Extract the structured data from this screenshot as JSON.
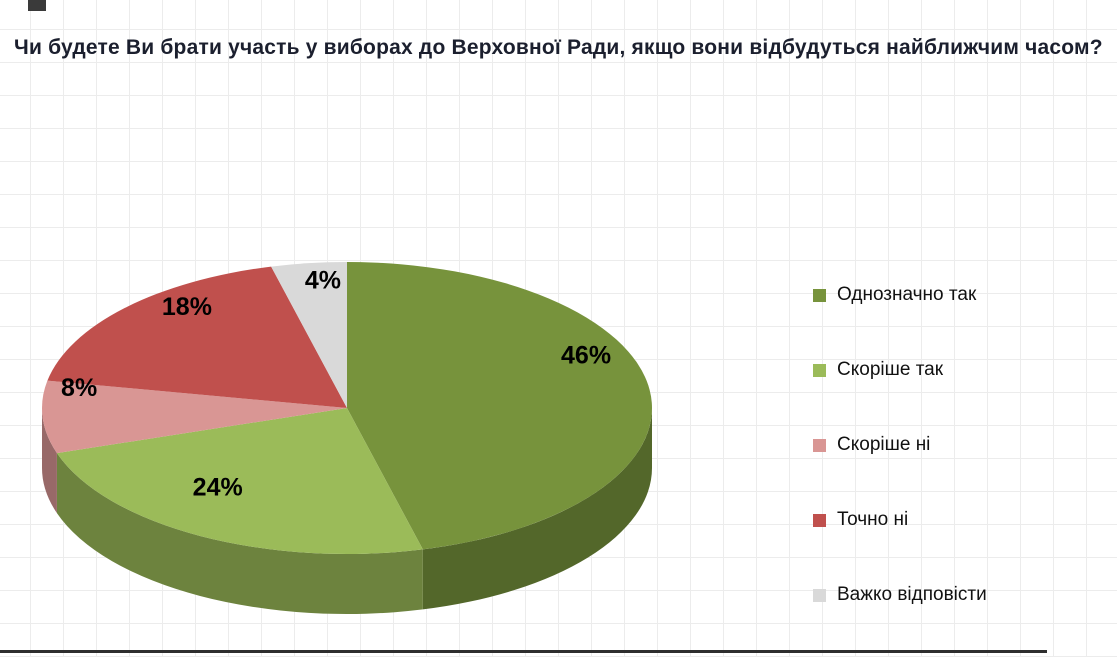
{
  "title": "Чи будете Ви брати участь у виборах до Верховної Ради, якщо вони відбудуться найближчим часом?",
  "chart_data": {
    "type": "pie",
    "style": "3d-pie",
    "title": "Чи будете Ви брати участь у виборах до Верховної Ради, якщо вони відбудуться найближчим часом?",
    "labels": [
      "Однозначно так",
      "Скоріше так",
      "Скоріше ні",
      "Точно ні",
      "Важко відповісти"
    ],
    "values": [
      46,
      24,
      8,
      18,
      4
    ],
    "value_labels": [
      "46%",
      "24%",
      "8%",
      "18%",
      "4%"
    ],
    "colors": [
      "#77933C",
      "#9BBB59",
      "#D99694",
      "#C0504D",
      "#D9D9D9"
    ],
    "start_angle_deg": 0,
    "direction": "clockwise",
    "legend_position": "right",
    "grid": "faint graph-paper background"
  }
}
